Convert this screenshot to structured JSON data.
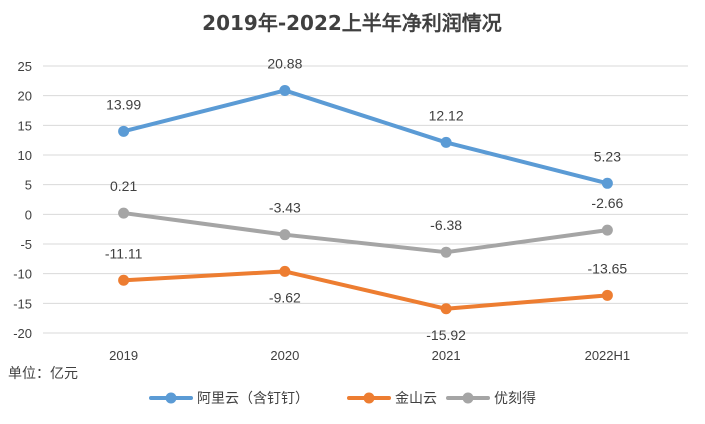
{
  "chart_data": {
    "type": "line",
    "title": "2019年-2022上半年净利润情况",
    "unit_label": "单位：亿元",
    "categories": [
      "2019",
      "2020",
      "2021",
      "2022H1"
    ],
    "ylim": [
      -20,
      25
    ],
    "yticks": [
      25,
      20,
      15,
      10,
      5,
      0,
      -5,
      -10,
      -15,
      -20
    ],
    "grid": true,
    "legend_position": "bottom",
    "series": [
      {
        "name": "阿里云（含钉钉）",
        "color": "#5b9bd5",
        "values": [
          13.99,
          20.88,
          12.12,
          5.23
        ],
        "labels": [
          "13.99",
          "20.88",
          "12.12",
          "5.23"
        ]
      },
      {
        "name": "金山云",
        "color": "#ed7d31",
        "values": [
          -11.11,
          -9.62,
          -15.92,
          -13.65
        ],
        "labels": [
          "-11.11",
          "-9.62",
          "-15.92",
          "-13.65"
        ]
      },
      {
        "name": "优刻得",
        "color": "#a5a5a5",
        "values": [
          0.21,
          -3.43,
          -6.38,
          -2.66
        ],
        "labels": [
          "0.21",
          "-3.43",
          "-6.38",
          "-2.66"
        ]
      }
    ]
  }
}
